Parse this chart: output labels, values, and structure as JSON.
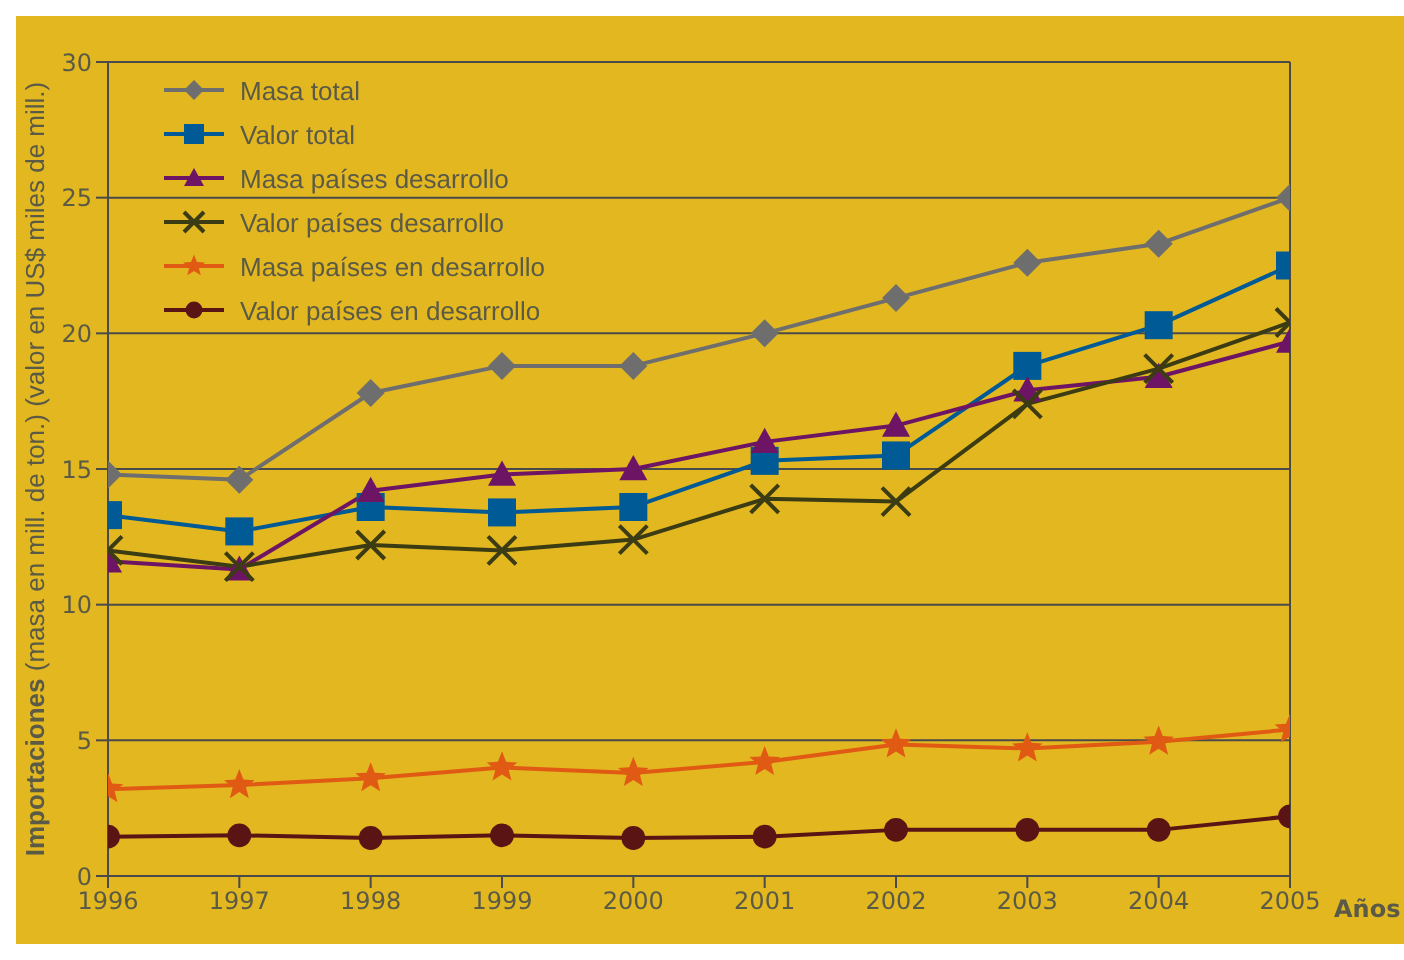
{
  "chart_data": {
    "type": "line",
    "xlabel": "Años",
    "ylabel": "Importaciones (masa en mill. de ton.) (valor en US$ miles de mill.)",
    "x": [
      1996,
      1997,
      1998,
      1999,
      2000,
      2001,
      2002,
      2003,
      2004,
      2005
    ],
    "xlim": [
      1996,
      2005
    ],
    "xticks": [
      1996,
      1997,
      1998,
      1999,
      2000,
      2001,
      2002,
      2003,
      2004,
      2005
    ],
    "ylim": [
      0,
      30
    ],
    "yticks": [
      0,
      5,
      10,
      15,
      20,
      25,
      30
    ],
    "grid": "y",
    "legend": "top left",
    "series": [
      {
        "name": "Masa total",
        "color": "#6e6e6e",
        "marker": "diamond",
        "values": [
          14.8,
          14.6,
          17.8,
          18.8,
          18.8,
          20.0,
          21.3,
          22.6,
          23.3,
          25.0
        ]
      },
      {
        "name": "Valor total",
        "color": "#005a96",
        "marker": "square",
        "values": [
          13.3,
          12.7,
          13.6,
          13.4,
          13.6,
          15.3,
          15.5,
          18.8,
          20.3,
          22.5
        ]
      },
      {
        "name": "Masa países desarrollo",
        "color": "#6e1464",
        "marker": "triangle",
        "values": [
          11.6,
          11.3,
          14.2,
          14.8,
          15.0,
          16.0,
          16.6,
          17.9,
          18.4,
          19.7
        ]
      },
      {
        "name": "Valor países desarrollo",
        "color": "#3c3c14",
        "marker": "cross",
        "values": [
          12.0,
          11.4,
          12.2,
          12.0,
          12.4,
          13.9,
          13.8,
          17.4,
          18.7,
          20.4
        ]
      },
      {
        "name": "Masa países en desarrollo",
        "color": "#e05a14",
        "marker": "star",
        "values": [
          3.2,
          3.35,
          3.6,
          4.0,
          3.8,
          4.2,
          4.85,
          4.7,
          4.95,
          5.4
        ]
      },
      {
        "name": "Valor países en desarrollo",
        "color": "#5a1414",
        "marker": "circle",
        "values": [
          1.45,
          1.5,
          1.4,
          1.5,
          1.4,
          1.45,
          1.7,
          1.7,
          1.7,
          2.2
        ]
      }
    ]
  }
}
